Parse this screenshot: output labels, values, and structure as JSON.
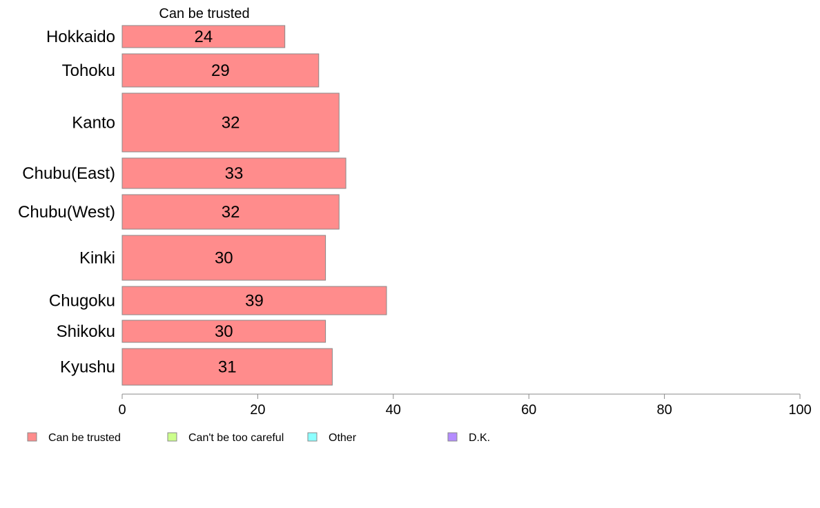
{
  "chart_data": {
    "type": "bar",
    "orientation": "horizontal",
    "panel_title": "Can be trusted",
    "categories": [
      "Hokkaido",
      "Tohoku",
      "Kanto",
      "Chubu(East)",
      "Chubu(West)",
      "Kinki",
      "Chugoku",
      "Shikoku",
      "Kyushu"
    ],
    "series": [
      {
        "name": "Can be trusted",
        "values": [
          24,
          29,
          32,
          33,
          32,
          30,
          39,
          30,
          31
        ]
      }
    ],
    "value_labels": [
      "24",
      "29",
      "32",
      "33",
      "32",
      "30",
      "39",
      "30",
      "31"
    ],
    "xlim": [
      0,
      100
    ],
    "x_ticks": [
      0,
      20,
      40,
      60,
      80,
      100
    ],
    "grid": false,
    "legend_position": "bottom-left",
    "legend": [
      {
        "label": "Can be trusted",
        "color": "#ff8c8c"
      },
      {
        "label": "Can't be too careful",
        "color": "#ccff8c"
      },
      {
        "label": "Other",
        "color": "#8cffff"
      },
      {
        "label": "D.K.",
        "color": "#b48cff"
      }
    ],
    "bar_color": "#ff8c8c",
    "bar_edge_color": "#888888"
  }
}
